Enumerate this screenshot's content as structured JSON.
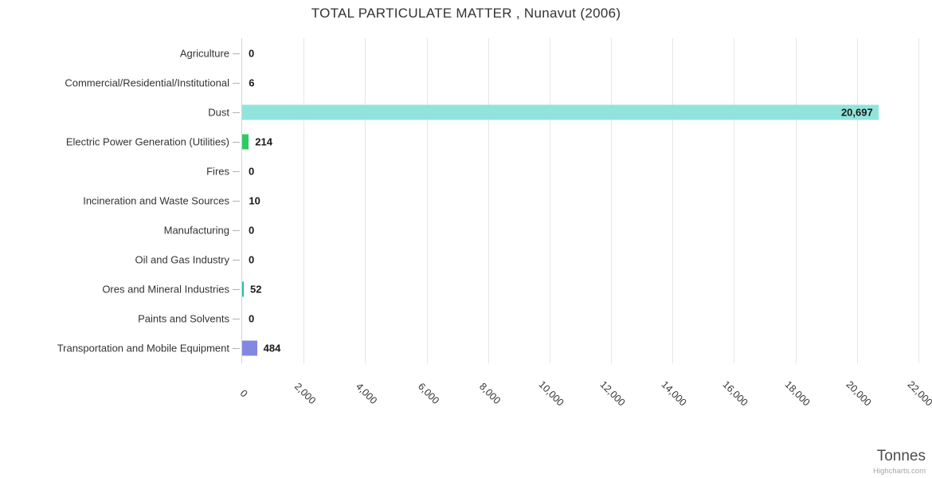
{
  "header": {
    "title": "TOTAL PARTICULATE MATTER , Nunavut (2006)"
  },
  "footer": {
    "axis_title": "Tonnes",
    "credits": "Highcharts.com"
  },
  "chart_data": {
    "type": "bar",
    "orientation": "horizontal",
    "title": "TOTAL PARTICULATE MATTER , Nunavut (2006)",
    "xlabel": "Tonnes",
    "ylabel": "",
    "xlim": [
      0,
      22000
    ],
    "tick_interval": 2000,
    "grid": true,
    "legend": false,
    "x_tick_labels": [
      "0",
      "2,000",
      "4,000",
      "6,000",
      "8,000",
      "10,000",
      "12,000",
      "14,000",
      "16,000",
      "18,000",
      "20,000",
      "22,000"
    ],
    "categories": [
      "Agriculture",
      "Commercial/Residential/Institutional",
      "Dust",
      "Electric Power Generation (Utilities)",
      "Fires",
      "Incineration and Waste Sources",
      "Manufacturing",
      "Oil and Gas Industry",
      "Ores and Mineral Industries",
      "Paints and Solvents",
      "Transportation and Mobile Equipment"
    ],
    "values": [
      0,
      6,
      20697,
      214,
      0,
      10,
      0,
      0,
      52,
      0,
      484
    ],
    "value_labels": [
      "0",
      "6",
      "20,697",
      "214",
      "0",
      "10",
      "0",
      "0",
      "52",
      "0",
      "484"
    ],
    "bar_colors": [
      null,
      null,
      "#91e4db",
      "#30cb60",
      null,
      null,
      null,
      null,
      "#29bdb1",
      null,
      "#8287e2"
    ],
    "default_bar_color": "#7cb5ec"
  }
}
